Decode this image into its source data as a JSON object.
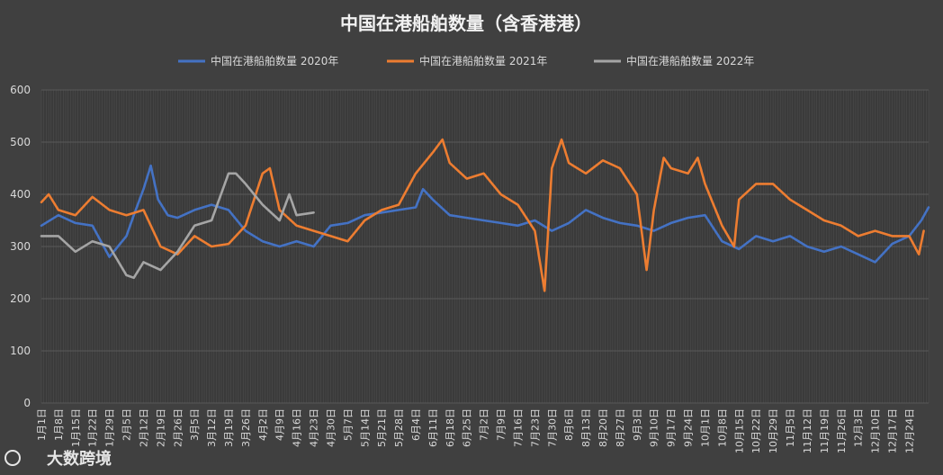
{
  "watermark": "大数跨境",
  "chart_data": {
    "type": "line",
    "title": "中国在港船舶数量（含香港港）",
    "legend_position": "top",
    "ylim": [
      0,
      600
    ],
    "yticks": [
      0,
      100,
      200,
      300,
      400,
      500,
      600
    ],
    "grid": true,
    "x_tick_labels": [
      "1月1日",
      "1月8日",
      "1月15日",
      "1月22日",
      "1月29日",
      "2月5日",
      "2月12日",
      "2月19日",
      "2月26日",
      "3月5日",
      "3月12日",
      "3月19日",
      "3月26日",
      "4月2日",
      "4月9日",
      "4月16日",
      "4月23日",
      "4月30日",
      "5月7日",
      "5月14日",
      "5月21日",
      "5月28日",
      "6月4日",
      "6月11日",
      "6月18日",
      "6月25日",
      "7月2日",
      "7月9日",
      "7月16日",
      "7月23日",
      "7月30日",
      "8月6日",
      "8月13日",
      "8月20日",
      "8月27日",
      "9月3日",
      "9月10日",
      "9月17日",
      "9月24日",
      "10月1日",
      "10月8日",
      "10月15日",
      "10月22日",
      "10月29日",
      "11月5日",
      "11月12日",
      "11月19日",
      "11月26日",
      "12月3日",
      "12月10日",
      "12月17日",
      "12月24日"
    ],
    "x_day_offsets": [
      0,
      7,
      14,
      21,
      28,
      35,
      42,
      49,
      56,
      63,
      70,
      77,
      84,
      91,
      98,
      105,
      112,
      119,
      126,
      133,
      140,
      147,
      154,
      161,
      168,
      175,
      182,
      189,
      196,
      203,
      210,
      217,
      224,
      231,
      238,
      245,
      252,
      259,
      266,
      273,
      280,
      287,
      294,
      301,
      308,
      315,
      322,
      329,
      336,
      343,
      350,
      357
    ],
    "series": [
      {
        "name": "中国在港船舶数量 2020年",
        "color": "#4472c4",
        "values": [
          [
            0,
            340
          ],
          [
            7,
            360
          ],
          [
            14,
            345
          ],
          [
            21,
            340
          ],
          [
            28,
            280
          ],
          [
            35,
            320
          ],
          [
            38,
            360
          ],
          [
            42,
            410
          ],
          [
            45,
            455
          ],
          [
            48,
            390
          ],
          [
            52,
            360
          ],
          [
            56,
            355
          ],
          [
            63,
            370
          ],
          [
            70,
            380
          ],
          [
            77,
            370
          ],
          [
            84,
            330
          ],
          [
            91,
            310
          ],
          [
            98,
            300
          ],
          [
            105,
            310
          ],
          [
            112,
            300
          ],
          [
            119,
            340
          ],
          [
            126,
            345
          ],
          [
            133,
            360
          ],
          [
            140,
            365
          ],
          [
            147,
            370
          ],
          [
            154,
            375
          ],
          [
            157,
            410
          ],
          [
            161,
            390
          ],
          [
            168,
            360
          ],
          [
            175,
            355
          ],
          [
            182,
            350
          ],
          [
            189,
            345
          ],
          [
            196,
            340
          ],
          [
            203,
            350
          ],
          [
            210,
            330
          ],
          [
            217,
            345
          ],
          [
            224,
            370
          ],
          [
            231,
            355
          ],
          [
            238,
            345
          ],
          [
            245,
            340
          ],
          [
            252,
            330
          ],
          [
            259,
            345
          ],
          [
            266,
            355
          ],
          [
            273,
            360
          ],
          [
            280,
            310
          ],
          [
            287,
            295
          ],
          [
            294,
            320
          ],
          [
            301,
            310
          ],
          [
            308,
            320
          ],
          [
            315,
            300
          ],
          [
            322,
            290
          ],
          [
            329,
            300
          ],
          [
            336,
            285
          ],
          [
            343,
            270
          ],
          [
            350,
            305
          ],
          [
            357,
            320
          ],
          [
            362,
            350
          ],
          [
            365,
            375
          ]
        ]
      },
      {
        "name": "中国在港船舶数量 2021年",
        "color": "#ed7d31",
        "values": [
          [
            0,
            385
          ],
          [
            3,
            400
          ],
          [
            7,
            370
          ],
          [
            14,
            360
          ],
          [
            21,
            395
          ],
          [
            28,
            370
          ],
          [
            35,
            360
          ],
          [
            42,
            370
          ],
          [
            49,
            300
          ],
          [
            56,
            285
          ],
          [
            63,
            320
          ],
          [
            70,
            300
          ],
          [
            77,
            305
          ],
          [
            84,
            340
          ],
          [
            91,
            440
          ],
          [
            94,
            450
          ],
          [
            98,
            370
          ],
          [
            105,
            340
          ],
          [
            112,
            330
          ],
          [
            119,
            320
          ],
          [
            126,
            310
          ],
          [
            133,
            350
          ],
          [
            140,
            370
          ],
          [
            147,
            380
          ],
          [
            154,
            440
          ],
          [
            161,
            480
          ],
          [
            165,
            505
          ],
          [
            168,
            460
          ],
          [
            175,
            430
          ],
          [
            182,
            440
          ],
          [
            189,
            400
          ],
          [
            196,
            380
          ],
          [
            203,
            330
          ],
          [
            207,
            215
          ],
          [
            210,
            450
          ],
          [
            214,
            505
          ],
          [
            217,
            460
          ],
          [
            224,
            440
          ],
          [
            231,
            465
          ],
          [
            238,
            450
          ],
          [
            245,
            400
          ],
          [
            249,
            255
          ],
          [
            252,
            370
          ],
          [
            256,
            470
          ],
          [
            259,
            450
          ],
          [
            266,
            440
          ],
          [
            270,
            470
          ],
          [
            273,
            420
          ],
          [
            280,
            340
          ],
          [
            285,
            300
          ],
          [
            287,
            390
          ],
          [
            294,
            420
          ],
          [
            301,
            420
          ],
          [
            308,
            390
          ],
          [
            315,
            370
          ],
          [
            322,
            350
          ],
          [
            329,
            340
          ],
          [
            336,
            320
          ],
          [
            343,
            330
          ],
          [
            350,
            320
          ],
          [
            357,
            320
          ],
          [
            361,
            285
          ],
          [
            363,
            330
          ]
        ]
      },
      {
        "name": "中国在港船舶数量 2022年",
        "color": "#a5a5a5",
        "values": [
          [
            0,
            320
          ],
          [
            7,
            320
          ],
          [
            14,
            290
          ],
          [
            21,
            310
          ],
          [
            28,
            300
          ],
          [
            35,
            245
          ],
          [
            38,
            240
          ],
          [
            42,
            270
          ],
          [
            49,
            255
          ],
          [
            56,
            290
          ],
          [
            63,
            340
          ],
          [
            70,
            350
          ],
          [
            77,
            440
          ],
          [
            80,
            440
          ],
          [
            84,
            420
          ],
          [
            91,
            380
          ],
          [
            98,
            350
          ],
          [
            102,
            400
          ],
          [
            105,
            360
          ],
          [
            112,
            365
          ]
        ]
      }
    ]
  }
}
